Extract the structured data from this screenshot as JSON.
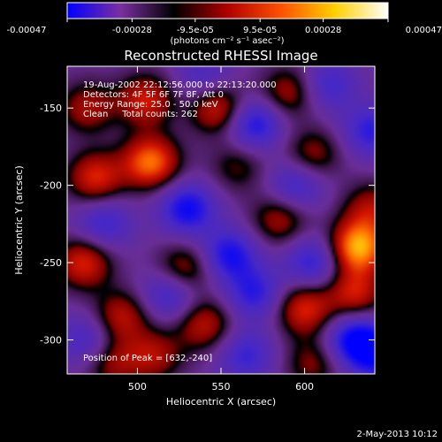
{
  "chart_data": {
    "type": "heatmap",
    "title": "Reconstructed RHESSI Image",
    "xlabel": "Heliocentric X (arcsec)",
    "ylabel": "Heliocentric Y (arcsec)",
    "xlim": [
      458,
      642
    ],
    "ylim": [
      -322,
      -123
    ],
    "x_ticks": [
      500,
      550,
      600
    ],
    "y_ticks": [
      -150,
      -200,
      -250,
      -300
    ],
    "colorbar": {
      "ticks": [
        "-0.00047",
        "-0.00028",
        "-9.5e-05",
        "9.5e-05",
        "0.00028",
        "0.00047"
      ],
      "values": [
        -0.00047,
        -0.00028,
        -9.5e-05,
        9.5e-05,
        0.00028,
        0.00047
      ],
      "range": [
        -0.00047,
        0.00047
      ],
      "units": "(photons cm⁻² s⁻¹ asec⁻²)",
      "colors": [
        "#0000ff",
        "#7a2fa0",
        "#000000",
        "#b00000",
        "#ff5000",
        "#ffd000",
        "#ffffff"
      ]
    },
    "annotations": [
      "19-Aug-2002 22:12:56.000 to 22:13:20.000",
      "Detectors: 4F 5F 6F 7F 8F, Att 0",
      "Energy Range: 25.0 - 50.0 keV",
      "Clean     Total counts: 262"
    ],
    "peak_label": "Position of Peak = [632,-240]",
    "sources": [
      {
        "x": 632,
        "y": -240,
        "v": 0.00047
      },
      {
        "x": 508,
        "y": -185,
        "v": 0.0004
      },
      {
        "x": 548,
        "y": -150,
        "v": 0.0003
      },
      {
        "x": 505,
        "y": -145,
        "v": 0.00028
      },
      {
        "x": 475,
        "y": -195,
        "v": 0.0003
      },
      {
        "x": 470,
        "y": -150,
        "v": 0.00022
      },
      {
        "x": 468,
        "y": -250,
        "v": 0.0003
      },
      {
        "x": 590,
        "y": -140,
        "v": 0.00022
      },
      {
        "x": 605,
        "y": -180,
        "v": 0.0002
      },
      {
        "x": 528,
        "y": -255,
        "v": 0.00025
      },
      {
        "x": 585,
        "y": -222,
        "v": 0.00022
      },
      {
        "x": 640,
        "y": -215,
        "v": 0.00022
      },
      {
        "x": 600,
        "y": -280,
        "v": 0.0003
      },
      {
        "x": 630,
        "y": -270,
        "v": 0.00028
      },
      {
        "x": 540,
        "y": -290,
        "v": 0.00025
      },
      {
        "x": 490,
        "y": -285,
        "v": 0.00025
      },
      {
        "x": 485,
        "y": -315,
        "v": 0.0002
      },
      {
        "x": 510,
        "y": -310,
        "v": 0.00022
      },
      {
        "x": 605,
        "y": -315,
        "v": 0.00018
      },
      {
        "x": 560,
        "y": -188,
        "v": 0.00015
      },
      {
        "x": 570,
        "y": -160,
        "v": -0.0003
      },
      {
        "x": 530,
        "y": -215,
        "v": -0.00032
      },
      {
        "x": 555,
        "y": -245,
        "v": -0.0003
      },
      {
        "x": 570,
        "y": -270,
        "v": -0.00025
      },
      {
        "x": 520,
        "y": -270,
        "v": -0.00025
      },
      {
        "x": 480,
        "y": -225,
        "v": -0.00022
      },
      {
        "x": 630,
        "y": -300,
        "v": -0.00035
      },
      {
        "x": 645,
        "y": -310,
        "v": -0.00028
      },
      {
        "x": 605,
        "y": -250,
        "v": -0.00025
      },
      {
        "x": 595,
        "y": -200,
        "v": -0.00022
      },
      {
        "x": 640,
        "y": -165,
        "v": -0.00025
      },
      {
        "x": 470,
        "y": -300,
        "v": -0.0002
      },
      {
        "x": 565,
        "y": -310,
        "v": -0.00022
      },
      {
        "x": 540,
        "y": -130,
        "v": -0.00018
      },
      {
        "x": 615,
        "y": -135,
        "v": -0.0002
      }
    ]
  },
  "footer_date": "2-May-2013 10:12"
}
